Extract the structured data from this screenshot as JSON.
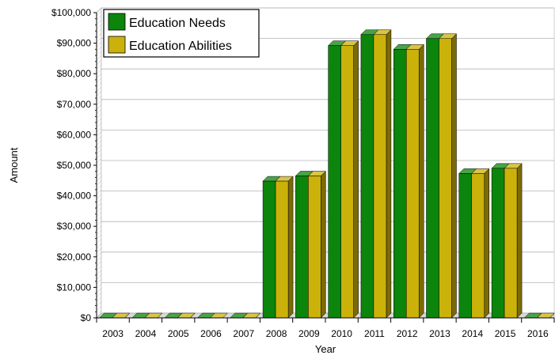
{
  "chart_data": {
    "type": "bar",
    "title": "",
    "xlabel": "Year",
    "ylabel": "Amount",
    "categories": [
      "2003",
      "2004",
      "2005",
      "2006",
      "2007",
      "2008",
      "2009",
      "2010",
      "2011",
      "2012",
      "2013",
      "2014",
      "2015",
      "2016"
    ],
    "series": [
      {
        "name": "Education Needs",
        "color": "#0b850b",
        "values": [
          0,
          0,
          0,
          0,
          0,
          44800,
          46500,
          89200,
          92800,
          88000,
          91500,
          47300,
          49000,
          0
        ]
      },
      {
        "name": "Education Abilities",
        "color": "#cbb20b",
        "values": [
          0,
          0,
          0,
          0,
          0,
          44800,
          46500,
          89200,
          92800,
          88000,
          91500,
          47300,
          49000,
          0
        ]
      }
    ],
    "ylim": [
      0,
      100000
    ],
    "yticks": [
      0,
      10000,
      20000,
      30000,
      40000,
      50000,
      60000,
      70000,
      80000,
      90000,
      100000
    ],
    "ytick_labels": [
      "$0",
      "$10,000",
      "$20,000",
      "$30,000",
      "$40,000",
      "$50,000",
      "$60,000",
      "$70,000",
      "$80,000",
      "$90,000",
      "$100,000"
    ],
    "grid": true,
    "legend": "top-left"
  }
}
